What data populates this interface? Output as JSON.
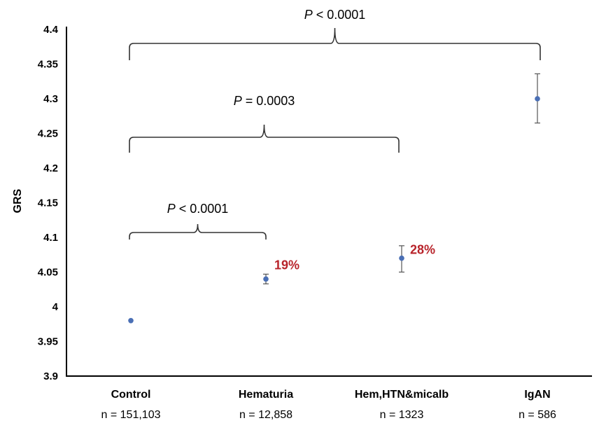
{
  "chart_data": {
    "type": "scatter",
    "ylabel": "GRS",
    "ylim": [
      3.9,
      4.4
    ],
    "yticks": [
      "3.9",
      "3.95",
      "4",
      "4.05",
      "4.1",
      "4.15",
      "4.2",
      "4.25",
      "4.3",
      "4.35",
      "4.4"
    ],
    "categories": [
      "Control",
      "Hematuria",
      "Hem,HTN&micalb",
      "IgAN"
    ],
    "sample_sizes": [
      "n = 151,103",
      "n = 12,858",
      "n = 1323",
      "n = 586"
    ],
    "values": [
      3.98,
      4.04,
      4.07,
      4.3
    ],
    "error_low": [
      3.98,
      4.033,
      4.05,
      4.265
    ],
    "error_high": [
      3.98,
      4.047,
      4.088,
      4.336
    ],
    "point_labels": [
      "",
      "19%",
      "28%",
      ""
    ],
    "point_color": "#4a6fb5",
    "label_color": "#b8232a",
    "comparisons": [
      {
        "from": 0,
        "to": 1,
        "p_symbol": "P",
        "p_value": "< 0.0001"
      },
      {
        "from": 0,
        "to": 2,
        "p_symbol": "P",
        "p_value": "= 0.0003"
      },
      {
        "from": 0,
        "to": 3,
        "p_symbol": "P",
        "p_value": "< 0.0001"
      }
    ],
    "grid": false
  }
}
